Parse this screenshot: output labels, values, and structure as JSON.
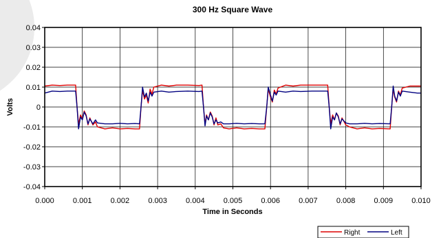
{
  "chart_data": {
    "type": "line",
    "title": "300 Hz Square Wave",
    "xlabel": "Time in Seconds",
    "ylabel": "Volts",
    "xlim": [
      0,
      0.01
    ],
    "ylim": [
      -0.04,
      0.04
    ],
    "grid": true,
    "legend_position": "bottom-right",
    "x_ticks": [
      0,
      0.001,
      0.002,
      0.003,
      0.004,
      0.005,
      0.006,
      0.007,
      0.008,
      0.009,
      0.01
    ],
    "x_tick_labels": [
      "0.000",
      "0.001",
      "0.002",
      "0.003",
      "0.004",
      "0.005",
      "0.006",
      "0.007",
      "0.008",
      "0.009",
      "0.010"
    ],
    "y_ticks": [
      0.04,
      0.03,
      0.02,
      0.01,
      0,
      -0.01,
      -0.02,
      -0.03,
      -0.04
    ],
    "y_tick_labels": [
      "0.04",
      "0.03",
      "0.02",
      "0.01",
      "0",
      "-0.01",
      "-0.02",
      "-0.03",
      "-0.04"
    ],
    "series": [
      {
        "name": "Right",
        "color": "#dd0000",
        "points": [
          [
            0,
            0.0105
          ],
          [
            0.0002,
            0.011
          ],
          [
            0.0004,
            0.0108
          ],
          [
            0.0006,
            0.011
          ],
          [
            0.00082,
            0.011
          ],
          [
            0.00086,
            0.0
          ],
          [
            0.0009,
            -0.0088
          ],
          [
            0.00095,
            -0.004
          ],
          [
            0.001,
            -0.006
          ],
          [
            0.00105,
            -0.002
          ],
          [
            0.0011,
            -0.004
          ],
          [
            0.00115,
            -0.009
          ],
          [
            0.0012,
            -0.0055
          ],
          [
            0.00128,
            -0.009
          ],
          [
            0.00135,
            -0.0075
          ],
          [
            0.0014,
            -0.01
          ],
          [
            0.0016,
            -0.011
          ],
          [
            0.0018,
            -0.0105
          ],
          [
            0.002,
            -0.011
          ],
          [
            0.0022,
            -0.0108
          ],
          [
            0.0024,
            -0.011
          ],
          [
            0.00252,
            -0.011
          ],
          [
            0.00256,
            0.0
          ],
          [
            0.0026,
            0.0085
          ],
          [
            0.00265,
            0.004
          ],
          [
            0.0027,
            0.006
          ],
          [
            0.00275,
            0.002
          ],
          [
            0.0028,
            0.009
          ],
          [
            0.00285,
            0.0065
          ],
          [
            0.0029,
            0.01
          ],
          [
            0.0031,
            0.011
          ],
          [
            0.0033,
            0.0105
          ],
          [
            0.0035,
            0.011
          ],
          [
            0.0038,
            0.011
          ],
          [
            0.0041,
            0.0108
          ],
          [
            0.00418,
            0.011
          ],
          [
            0.00422,
            0.0
          ],
          [
            0.00426,
            -0.0085
          ],
          [
            0.0043,
            -0.004
          ],
          [
            0.00435,
            -0.0065
          ],
          [
            0.0044,
            -0.0025
          ],
          [
            0.00445,
            -0.0045
          ],
          [
            0.0045,
            -0.009
          ],
          [
            0.00455,
            -0.0055
          ],
          [
            0.0046,
            -0.009
          ],
          [
            0.00468,
            -0.0085
          ],
          [
            0.00475,
            -0.0105
          ],
          [
            0.0049,
            -0.011
          ],
          [
            0.0051,
            -0.0105
          ],
          [
            0.0053,
            -0.011
          ],
          [
            0.0055,
            -0.0108
          ],
          [
            0.0057,
            -0.011
          ],
          [
            0.00585,
            -0.011
          ],
          [
            0.0059,
            0.0
          ],
          [
            0.00594,
            0.009
          ],
          [
            0.006,
            0.005
          ],
          [
            0.00605,
            0.0025
          ],
          [
            0.0061,
            0.0085
          ],
          [
            0.00615,
            0.0065
          ],
          [
            0.0062,
            0.0095
          ],
          [
            0.0064,
            0.011
          ],
          [
            0.0066,
            0.0105
          ],
          [
            0.0068,
            0.011
          ],
          [
            0.0071,
            0.011
          ],
          [
            0.0074,
            0.011
          ],
          [
            0.00752,
            0.011
          ],
          [
            0.00756,
            0.0
          ],
          [
            0.0076,
            -0.0085
          ],
          [
            0.00765,
            -0.004
          ],
          [
            0.0077,
            -0.0065
          ],
          [
            0.00775,
            -0.003
          ],
          [
            0.0078,
            -0.0045
          ],
          [
            0.00785,
            -0.009
          ],
          [
            0.0079,
            -0.0055
          ],
          [
            0.008,
            -0.009
          ],
          [
            0.0081,
            -0.01
          ],
          [
            0.0083,
            -0.011
          ],
          [
            0.0085,
            -0.0105
          ],
          [
            0.0087,
            -0.011
          ],
          [
            0.0089,
            -0.0108
          ],
          [
            0.00918,
            -0.011
          ],
          [
            0.00922,
            0.0
          ],
          [
            0.00926,
            0.009
          ],
          [
            0.0093,
            0.005
          ],
          [
            0.00935,
            0.0025
          ],
          [
            0.0094,
            0.008
          ],
          [
            0.00945,
            0.006
          ],
          [
            0.0095,
            0.0095
          ],
          [
            0.0097,
            0.0105
          ],
          [
            0.0099,
            0.0105
          ],
          [
            0.01,
            0.0105
          ]
        ]
      },
      {
        "name": "Left",
        "color": "#000080",
        "points": [
          [
            0,
            0.007
          ],
          [
            0.0002,
            0.008
          ],
          [
            0.0004,
            0.0078
          ],
          [
            0.0006,
            0.008
          ],
          [
            0.00082,
            0.008
          ],
          [
            0.00086,
            0.0
          ],
          [
            0.0009,
            -0.011
          ],
          [
            0.00095,
            -0.005
          ],
          [
            0.001,
            -0.0065
          ],
          [
            0.00105,
            -0.0025
          ],
          [
            0.0011,
            -0.0045
          ],
          [
            0.00115,
            -0.0085
          ],
          [
            0.0012,
            -0.006
          ],
          [
            0.00128,
            -0.0085
          ],
          [
            0.00135,
            -0.0065
          ],
          [
            0.0014,
            -0.008
          ],
          [
            0.0016,
            -0.0085
          ],
          [
            0.0018,
            -0.0085
          ],
          [
            0.002,
            -0.0082
          ],
          [
            0.0022,
            -0.0085
          ],
          [
            0.0024,
            -0.0083
          ],
          [
            0.00252,
            -0.0085
          ],
          [
            0.00256,
            0.0
          ],
          [
            0.0026,
            0.01
          ],
          [
            0.00265,
            0.005
          ],
          [
            0.0027,
            0.007
          ],
          [
            0.00275,
            0.003
          ],
          [
            0.0028,
            0.0075
          ],
          [
            0.00285,
            0.0055
          ],
          [
            0.0029,
            0.0075
          ],
          [
            0.0031,
            0.008
          ],
          [
            0.0033,
            0.0075
          ],
          [
            0.0035,
            0.0078
          ],
          [
            0.0038,
            0.008
          ],
          [
            0.0041,
            0.0078
          ],
          [
            0.00418,
            0.008
          ],
          [
            0.00422,
            0.0
          ],
          [
            0.00426,
            -0.0095
          ],
          [
            0.0043,
            -0.0045
          ],
          [
            0.00435,
            -0.0065
          ],
          [
            0.0044,
            -0.003
          ],
          [
            0.00445,
            -0.005
          ],
          [
            0.0045,
            -0.0085
          ],
          [
            0.00455,
            -0.0065
          ],
          [
            0.0046,
            -0.008
          ],
          [
            0.00468,
            -0.0075
          ],
          [
            0.00475,
            -0.0085
          ],
          [
            0.0049,
            -0.0085
          ],
          [
            0.0051,
            -0.0082
          ],
          [
            0.0053,
            -0.0085
          ],
          [
            0.0055,
            -0.0083
          ],
          [
            0.0057,
            -0.0085
          ],
          [
            0.00585,
            -0.0085
          ],
          [
            0.0059,
            0.0
          ],
          [
            0.00594,
            0.01
          ],
          [
            0.006,
            0.006
          ],
          [
            0.00605,
            0.003
          ],
          [
            0.0061,
            0.0075
          ],
          [
            0.00615,
            0.006
          ],
          [
            0.0062,
            0.008
          ],
          [
            0.0064,
            0.0075
          ],
          [
            0.0066,
            0.008
          ],
          [
            0.0068,
            0.0078
          ],
          [
            0.0071,
            0.008
          ],
          [
            0.0074,
            0.008
          ],
          [
            0.00752,
            0.008
          ],
          [
            0.00756,
            0.0
          ],
          [
            0.0076,
            -0.011
          ],
          [
            0.00765,
            -0.005
          ],
          [
            0.0077,
            -0.0065
          ],
          [
            0.00775,
            -0.003
          ],
          [
            0.0078,
            -0.005
          ],
          [
            0.00785,
            -0.0085
          ],
          [
            0.0079,
            -0.006
          ],
          [
            0.008,
            -0.008
          ],
          [
            0.0081,
            -0.0085
          ],
          [
            0.0083,
            -0.0085
          ],
          [
            0.0085,
            -0.0082
          ],
          [
            0.0087,
            -0.0085
          ],
          [
            0.0089,
            -0.0083
          ],
          [
            0.00918,
            -0.0085
          ],
          [
            0.00922,
            0.0
          ],
          [
            0.00926,
            0.0105
          ],
          [
            0.0093,
            0.0055
          ],
          [
            0.00935,
            0.003
          ],
          [
            0.0094,
            0.0075
          ],
          [
            0.00945,
            0.0055
          ],
          [
            0.0095,
            0.008
          ],
          [
            0.0097,
            0.0075
          ],
          [
            0.0099,
            0.007
          ],
          [
            0.01,
            0.007
          ]
        ]
      }
    ]
  }
}
